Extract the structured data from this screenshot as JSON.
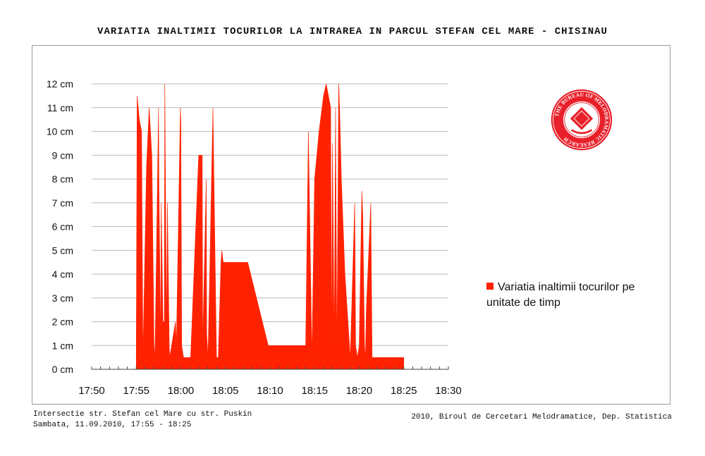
{
  "title": "VARIATIA INALTIMII TOCURILOR LA INTRAREA IN PARCUL STEFAN CEL MARE - CHISINAU",
  "footer": {
    "location": "Intersectie str. Stefan cel Mare cu str. Puskin",
    "date_time": "Sambata, 11.09.2010, 17:55 - 18:25",
    "credit": "2010, Biroul de Cercetari Melodramatice, Dep. Statistica"
  },
  "seal": {
    "text": "THE BUREAU OF MELODRAMATIC RESEARCH",
    "icon": "seal-emblem"
  },
  "colors": {
    "series": "#ff2200",
    "seal": "#e8202a",
    "grid": "#bbbbbb"
  },
  "chart_data": {
    "type": "area",
    "title": "VARIATIA INALTIMII TOCURILOR LA INTRAREA IN PARCUL STEFAN CEL MARE - CHISINAU",
    "xlabel": "",
    "ylabel": "",
    "x_ticks": [
      "17:50",
      "17:55",
      "18:00",
      "18:05",
      "18:10",
      "18:15",
      "18:20",
      "18:25",
      "18:30"
    ],
    "y_ticks": [
      "0 cm",
      "1 cm",
      "2 cm",
      "3 cm",
      "4 cm",
      "5 cm",
      "6 cm",
      "7 cm",
      "8 cm",
      "9 cm",
      "10 cm",
      "11 cm",
      "12 cm"
    ],
    "xlim_minutes": [
      0,
      40
    ],
    "ylim": [
      0,
      12
    ],
    "grid": "horizontal",
    "legend": "right",
    "series": [
      {
        "name": "Variatia inaltimii tocurilor pe unitate de timp",
        "x_minutes": [
          5.0,
          5.1,
          5.35,
          5.6,
          5.75,
          6.15,
          6.45,
          6.75,
          7.0,
          7.1,
          7.5,
          7.55,
          7.75,
          7.8,
          8.0,
          8.15,
          8.2,
          8.4,
          8.5,
          8.7,
          8.75,
          9.4,
          9.5,
          9.95,
          10.0,
          10.1,
          10.3,
          10.5,
          10.9,
          11.1,
          12.0,
          12.4,
          12.45,
          12.85,
          12.9,
          13.05,
          13.6,
          14.0,
          14.2,
          14.5,
          14.6,
          14.75,
          15.0,
          15.1,
          15.8,
          17.5,
          19.8,
          19.9,
          24.0,
          24.3,
          24.7,
          25.0,
          25.5,
          26.0,
          26.3,
          26.8,
          26.9,
          27.0,
          27.2,
          27.35,
          27.5,
          27.7,
          27.8,
          28.0,
          28.1,
          28.4,
          29.0,
          29.5,
          29.6,
          29.8,
          30.0,
          30.3,
          30.4,
          30.6,
          30.7,
          30.8,
          31.3,
          31.45,
          31.55,
          31.75,
          31.85,
          32.0,
          32.1,
          32.4,
          32.9,
          33.0,
          33.3,
          33.6,
          34.0,
          34.7,
          35.0
        ],
        "values": [
          0.5,
          11.5,
          10.5,
          10.0,
          0.5,
          8.5,
          11.0,
          9.0,
          1.0,
          0.5,
          11.0,
          7.5,
          1.0,
          7.0,
          2.0,
          2.0,
          12.0,
          1.5,
          7.0,
          1.0,
          0.5,
          2.0,
          1.0,
          11.0,
          10.5,
          1.0,
          0.5,
          0.5,
          0.5,
          0.5,
          9.0,
          9.0,
          1.0,
          8.0,
          1.5,
          0.5,
          11.0,
          0.5,
          0.5,
          4.5,
          5.0,
          4.5,
          4.5,
          4.5,
          4.5,
          4.5,
          1.0,
          1.0,
          1.0,
          10.0,
          0.5,
          8.0,
          10.0,
          11.5,
          12.0,
          11.0,
          0.5,
          9.5,
          1.0,
          11.0,
          0.5,
          12.0,
          11.0,
          8.0,
          7.0,
          4.0,
          0.5,
          7.0,
          1.0,
          0.5,
          1.0,
          7.5,
          6.5,
          1.0,
          0.5,
          2.5,
          7.0,
          0.5,
          0.5,
          0.5,
          0.5,
          0.5,
          0.5,
          0.5,
          0.5,
          0.5,
          0.5,
          0.5,
          0.5,
          0.5,
          0.5
        ]
      }
    ]
  }
}
